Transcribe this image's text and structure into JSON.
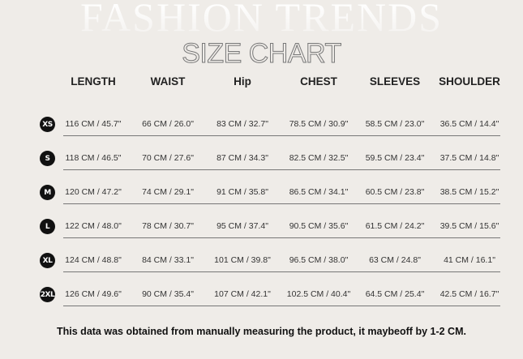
{
  "background_title": "FASHION TRENDS",
  "title": "SIZE CHART",
  "headers": [
    "LENGTH",
    "WAIST",
    "Hip",
    "CHEST",
    "SLEEVES",
    "SHOULDER"
  ],
  "rows": [
    {
      "size": "XS",
      "values": [
        "116 CM / 45.7\"",
        "66 CM / 26.0\"",
        "83 CM / 32.7\"",
        "78.5 CM / 30.9\"",
        "58.5 CM / 23.0\"",
        "36.5 CM / 14.4\""
      ]
    },
    {
      "size": "S",
      "values": [
        "118 CM / 46.5\"",
        "70 CM / 27.6\"",
        "87 CM / 34.3\"",
        "82.5 CM / 32.5\"",
        "59.5 CM / 23.4\"",
        "37.5 CM / 14.8\""
      ]
    },
    {
      "size": "M",
      "values": [
        "120 CM / 47.2\"",
        "74 CM / 29.1\"",
        "91 CM / 35.8\"",
        "86.5 CM / 34.1\"",
        "60.5 CM / 23.8\"",
        "38.5 CM / 15.2\""
      ]
    },
    {
      "size": "L",
      "values": [
        "122 CM / 48.0\"",
        "78 CM / 30.7\"",
        "95 CM / 37.4\"",
        "90.5 CM / 35.6\"",
        "61.5 CM / 24.2\"",
        "39.5 CM / 15.6\""
      ]
    },
    {
      "size": "XL",
      "values": [
        "124 CM / 48.8\"",
        "84 CM / 33.1\"",
        "101 CM / 39.8\"",
        "96.5 CM / 38.0\"",
        "63 CM / 24.8\"",
        "41 CM / 16.1\""
      ]
    },
    {
      "size": "2XL",
      "values": [
        "126 CM / 49.6\"",
        "90 CM / 35.4\"",
        "107 CM / 42.1\"",
        "102.5 CM / 40.4\"",
        "64.5 CM / 25.4\"",
        "42.5 CM / 16.7\""
      ]
    }
  ],
  "note": "This data was obtained from manually measuring the product, it maybeoff by 1-2 CM."
}
